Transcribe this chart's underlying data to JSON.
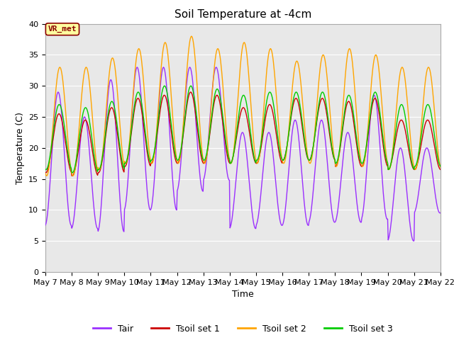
{
  "title": "Soil Temperature at -4cm",
  "xlabel": "Time",
  "ylabel": "Temperature (C)",
  "ylim": [
    0,
    40
  ],
  "xlim_days": [
    7,
    22
  ],
  "xtick_labels": [
    "May 7",
    "May 8",
    "May 9",
    "May 10",
    "May 11",
    "May 12",
    "May 13",
    "May 14",
    "May 15",
    "May 16",
    "May 17",
    "May 18",
    "May 19",
    "May 20",
    "May 21",
    "May 22"
  ],
  "colors": {
    "Tair": "#9B30FF",
    "Tsoil set 1": "#CC0000",
    "Tsoil set 2": "#FFA500",
    "Tsoil set 3": "#00CC00"
  },
  "annotation_text": "VR_met",
  "annotation_box_color": "#FFFFA0",
  "annotation_border_color": "#8B0000",
  "plot_bg_color": "#E8E8E8",
  "fig_bg_color": "#FFFFFF",
  "grid_color": "#FFFFFF",
  "title_fontsize": 11,
  "axis_label_fontsize": 9,
  "tick_fontsize": 8,
  "legend_fontsize": 9,
  "tair_min": [
    7.5,
    7.0,
    6.5,
    10.0,
    10.0,
    13.0,
    14.8,
    7.0,
    7.5,
    7.5,
    8.0,
    8.0,
    8.5,
    5.0,
    9.5
  ],
  "tair_max": [
    29.0,
    25.0,
    31.0,
    33.0,
    33.0,
    33.0,
    33.0,
    22.5,
    22.5,
    24.5,
    24.5,
    22.5,
    28.5,
    20.0,
    20.0
  ],
  "ts1_min": [
    16.0,
    15.5,
    16.0,
    17.0,
    17.5,
    17.5,
    17.5,
    17.5,
    17.5,
    18.0,
    18.0,
    17.0,
    17.0,
    16.5,
    16.5
  ],
  "ts1_max": [
    25.5,
    24.5,
    26.5,
    28.0,
    28.5,
    29.0,
    28.5,
    26.5,
    27.0,
    28.0,
    28.0,
    27.5,
    28.0,
    24.5,
    24.5
  ],
  "ts2_min": [
    15.5,
    15.5,
    16.5,
    17.5,
    17.5,
    17.5,
    17.5,
    17.5,
    17.5,
    17.5,
    17.5,
    17.0,
    17.0,
    16.5,
    16.5
  ],
  "ts2_max": [
    33.0,
    33.0,
    34.5,
    36.0,
    37.0,
    38.0,
    36.0,
    37.0,
    36.0,
    34.0,
    35.0,
    36.0,
    35.0,
    33.0,
    33.0
  ],
  "ts3_min": [
    16.5,
    16.0,
    16.5,
    17.5,
    18.0,
    18.0,
    18.0,
    17.5,
    18.0,
    18.0,
    18.0,
    17.5,
    17.5,
    16.5,
    17.0
  ],
  "ts3_max": [
    27.0,
    26.5,
    27.5,
    29.0,
    30.0,
    30.0,
    29.5,
    28.5,
    29.0,
    29.0,
    29.0,
    28.5,
    29.0,
    27.0,
    27.0
  ],
  "tair_phase": 0.1,
  "ts1_phase": -0.1,
  "ts2_phase": -0.3,
  "ts3_phase": -0.15
}
